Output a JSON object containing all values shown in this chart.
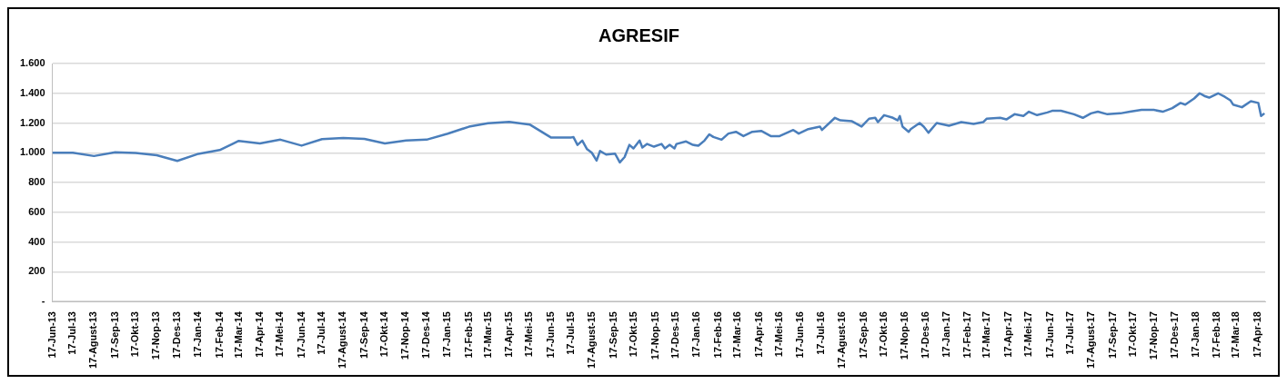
{
  "chart_data": {
    "type": "line",
    "title": "AGRESIF",
    "x": [
      "2013-06-17",
      "2013-07-17",
      "2013-08-17",
      "2013-09-17",
      "2013-10-17",
      "2013-11-17",
      "2013-12-17",
      "2014-01-17",
      "2014-02-17",
      "2014-03-17",
      "2014-04-17",
      "2014-05-17",
      "2014-06-17",
      "2014-07-17",
      "2014-08-17",
      "2014-09-17",
      "2014-10-17",
      "2014-11-17",
      "2014-12-17",
      "2015-01-17",
      "2015-02-17",
      "2015-03-17",
      "2015-04-17",
      "2015-05-17",
      "2015-06-17",
      "2015-07-17",
      "2015-07-20",
      "2015-07-26",
      "2015-08-02",
      "2015-08-09",
      "2015-08-16",
      "2015-08-23",
      "2015-08-28",
      "2015-09-06",
      "2015-09-19",
      "2015-09-26",
      "2015-10-03",
      "2015-10-10",
      "2015-10-16",
      "2015-10-25",
      "2015-10-29",
      "2015-11-05",
      "2015-11-15",
      "2015-11-26",
      "2015-12-01",
      "2015-12-08",
      "2015-12-15",
      "2015-12-18",
      "2016-01-01",
      "2016-01-11",
      "2016-01-19",
      "2016-01-28",
      "2016-02-04",
      "2016-02-10",
      "2016-02-22",
      "2016-03-03",
      "2016-03-14",
      "2016-03-25",
      "2016-04-07",
      "2016-04-20",
      "2016-05-04",
      "2016-05-17",
      "2016-06-06",
      "2016-06-14",
      "2016-06-28",
      "2016-07-15",
      "2016-07-18",
      "2016-08-06",
      "2016-08-14",
      "2016-08-31",
      "2016-09-14",
      "2016-09-25",
      "2016-10-04",
      "2016-10-08",
      "2016-10-17",
      "2016-10-30",
      "2016-11-06",
      "2016-11-09",
      "2016-11-13",
      "2016-11-22",
      "2016-11-25",
      "2016-12-08",
      "2016-12-14",
      "2016-12-21",
      "2017-01-02",
      "2017-01-20",
      "2017-02-07",
      "2017-02-25",
      "2017-03-11",
      "2017-03-16",
      "2017-04-05",
      "2017-04-14",
      "2017-04-26",
      "2017-05-09",
      "2017-05-17",
      "2017-05-29",
      "2017-06-13",
      "2017-06-20",
      "2017-07-03",
      "2017-07-22",
      "2017-08-04",
      "2017-08-16",
      "2017-08-26",
      "2017-09-09",
      "2017-09-28",
      "2017-10-12",
      "2017-10-29",
      "2017-11-16",
      "2017-11-29",
      "2017-12-13",
      "2017-12-25",
      "2018-01-01",
      "2018-01-14",
      "2018-01-22",
      "2018-01-29",
      "2018-02-05",
      "2018-02-18",
      "2018-02-28",
      "2018-03-08",
      "2018-03-12",
      "2018-03-25",
      "2018-04-07",
      "2018-04-18",
      "2018-04-22",
      "2018-04-27"
    ],
    "series": [
      {
        "color": "#4a7ebb",
        "values": [
          1000,
          1000,
          978,
          1003,
          998,
          983,
          945,
          993,
          1018,
          1080,
          1063,
          1088,
          1048,
          1092,
          1100,
          1093,
          1063,
          1083,
          1088,
          1128,
          1175,
          1198,
          1208,
          1190,
          1103,
          1103,
          1106,
          1053,
          1082,
          1024,
          1000,
          947,
          1012,
          988,
          994,
          935,
          971,
          1053,
          1029,
          1082,
          1035,
          1059,
          1041,
          1059,
          1029,
          1053,
          1029,
          1059,
          1076,
          1053,
          1047,
          1082,
          1124,
          1106,
          1088,
          1129,
          1141,
          1112,
          1141,
          1147,
          1112,
          1112,
          1153,
          1129,
          1159,
          1176,
          1153,
          1235,
          1218,
          1212,
          1176,
          1229,
          1235,
          1206,
          1253,
          1235,
          1218,
          1247,
          1176,
          1141,
          1159,
          1200,
          1176,
          1135,
          1200,
          1182,
          1206,
          1194,
          1206,
          1229,
          1235,
          1224,
          1259,
          1247,
          1276,
          1253,
          1271,
          1282,
          1282,
          1259,
          1235,
          1265,
          1276,
          1259,
          1265,
          1276,
          1288,
          1288,
          1276,
          1300,
          1335,
          1324,
          1365,
          1400,
          1382,
          1371,
          1400,
          1376,
          1353,
          1324,
          1306,
          1347,
          1335,
          1247,
          1265
        ]
      }
    ],
    "xlim": [
      "2013-06-17",
      "2018-04-28"
    ],
    "xticks": [
      {
        "value": "2013-06-17",
        "label": "17-Jun-13"
      },
      {
        "value": "2013-07-17",
        "label": "17-Jul-13"
      },
      {
        "value": "2013-08-17",
        "label": "17-Agust-13"
      },
      {
        "value": "2013-09-17",
        "label": "17-Sep-13"
      },
      {
        "value": "2013-10-17",
        "label": "17-Okt-13"
      },
      {
        "value": "2013-11-17",
        "label": "17-Nop-13"
      },
      {
        "value": "2013-12-17",
        "label": "17-Des-13"
      },
      {
        "value": "2014-01-17",
        "label": "17-Jan-14"
      },
      {
        "value": "2014-02-17",
        "label": "17-Feb-14"
      },
      {
        "value": "2014-03-17",
        "label": "17-Mar-14"
      },
      {
        "value": "2014-04-17",
        "label": "17-Apr-14"
      },
      {
        "value": "2014-05-17",
        "label": "17-Mei-14"
      },
      {
        "value": "2014-06-17",
        "label": "17-Jun-14"
      },
      {
        "value": "2014-07-17",
        "label": "17-Jul-14"
      },
      {
        "value": "2014-08-17",
        "label": "17-Agust-14"
      },
      {
        "value": "2014-09-17",
        "label": "17-Sep-14"
      },
      {
        "value": "2014-10-17",
        "label": "17-Okt-14"
      },
      {
        "value": "2014-11-17",
        "label": "17-Nop-14"
      },
      {
        "value": "2014-12-17",
        "label": "17-Des-14"
      },
      {
        "value": "2015-01-17",
        "label": "17-Jan-15"
      },
      {
        "value": "2015-02-17",
        "label": "17-Feb-15"
      },
      {
        "value": "2015-03-17",
        "label": "17-Mar-15"
      },
      {
        "value": "2015-04-17",
        "label": "17-Apr-15"
      },
      {
        "value": "2015-05-17",
        "label": "17-Mei-15"
      },
      {
        "value": "2015-06-17",
        "label": "17-Jun-15"
      },
      {
        "value": "2015-07-17",
        "label": "17-Jul-15"
      },
      {
        "value": "2015-08-17",
        "label": "17-Agust-15"
      },
      {
        "value": "2015-09-17",
        "label": "17-Sep-15"
      },
      {
        "value": "2015-10-17",
        "label": "17-Okt-15"
      },
      {
        "value": "2015-11-17",
        "label": "17-Nop-15"
      },
      {
        "value": "2015-12-17",
        "label": "17-Des-15"
      },
      {
        "value": "2016-01-17",
        "label": "17-Jan-16"
      },
      {
        "value": "2016-02-17",
        "label": "17-Feb-16"
      },
      {
        "value": "2016-03-17",
        "label": "17-Mar-16"
      },
      {
        "value": "2016-04-17",
        "label": "17-Apr-16"
      },
      {
        "value": "2016-05-17",
        "label": "17-Mei-16"
      },
      {
        "value": "2016-06-17",
        "label": "17-Jun-16"
      },
      {
        "value": "2016-07-17",
        "label": "17-Jul-16"
      },
      {
        "value": "2016-08-17",
        "label": "17-Agust-16"
      },
      {
        "value": "2016-09-17",
        "label": "17-Sep-16"
      },
      {
        "value": "2016-10-17",
        "label": "17-Okt-16"
      },
      {
        "value": "2016-11-17",
        "label": "17-Nop-16"
      },
      {
        "value": "2016-12-17",
        "label": "17-Des-16"
      },
      {
        "value": "2017-01-17",
        "label": "17-Jan-17"
      },
      {
        "value": "2017-02-17",
        "label": "17-Feb-17"
      },
      {
        "value": "2017-03-17",
        "label": "17-Mar-17"
      },
      {
        "value": "2017-04-17",
        "label": "17-Apr-17"
      },
      {
        "value": "2017-05-17",
        "label": "17-Mei-17"
      },
      {
        "value": "2017-06-17",
        "label": "17-Jun-17"
      },
      {
        "value": "2017-07-17",
        "label": "17-Jul-17"
      },
      {
        "value": "2017-08-17",
        "label": "17-Agust-17"
      },
      {
        "value": "2017-09-17",
        "label": "17-Sep-17"
      },
      {
        "value": "2017-10-17",
        "label": "17-Okt-17"
      },
      {
        "value": "2017-11-17",
        "label": "17-Nop-17"
      },
      {
        "value": "2017-12-17",
        "label": "17-Des-17"
      },
      {
        "value": "2018-01-17",
        "label": "17-Jan-18"
      },
      {
        "value": "2018-02-17",
        "label": "17-Feb-18"
      },
      {
        "value": "2018-03-17",
        "label": "17-Mar-18"
      },
      {
        "value": "2018-04-17",
        "label": "17-Apr-18"
      }
    ],
    "ylim": [
      0,
      1600
    ],
    "yticks": [
      {
        "value": 0,
        "label": "-"
      },
      200,
      400,
      600,
      800,
      {
        "value": 1000,
        "label": "1.000"
      },
      {
        "value": 1200,
        "label": "1.200"
      },
      {
        "value": 1400,
        "label": "1.400"
      },
      {
        "value": 1600,
        "label": "1.600"
      }
    ],
    "grid": "y",
    "legend": false,
    "marker": "none",
    "line_style": "solid"
  }
}
